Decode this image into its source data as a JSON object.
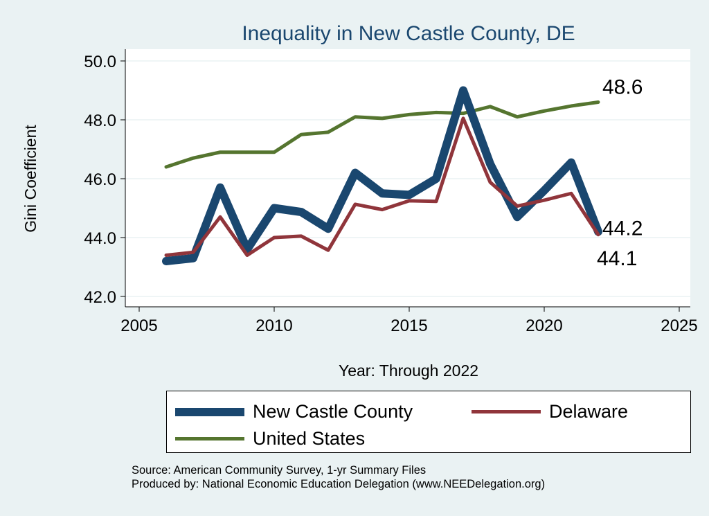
{
  "chart_data": {
    "type": "line",
    "title": "Inequality in New Castle County, DE",
    "xlabel": "Year: Through 2022",
    "ylabel": "Gini Coefficient",
    "xlim": [
      2004,
      2025.5
    ],
    "ylim": [
      41.6,
      50.4
    ],
    "xticks": [
      2005,
      2010,
      2015,
      2020,
      2025
    ],
    "yticks": [
      42.0,
      44.0,
      46.0,
      48.0,
      50.0
    ],
    "ytick_labels": [
      "42.0",
      "44.0",
      "46.0",
      "48.0",
      "50.0"
    ],
    "grid": true,
    "legend_placement": "bottom",
    "x": [
      2006,
      2007,
      2008,
      2009,
      2010,
      2011,
      2012,
      2013,
      2014,
      2015,
      2016,
      2017,
      2018,
      2019,
      2020,
      2021,
      2022
    ],
    "series": [
      {
        "name": "United States",
        "color": "#55752f",
        "width": 5,
        "values": [
          46.4,
          46.7,
          46.9,
          46.9,
          46.9,
          47.5,
          47.58,
          48.1,
          48.05,
          48.18,
          48.25,
          48.22,
          48.45,
          48.1,
          48.3,
          48.47,
          48.6
        ],
        "end_label": "48.6"
      },
      {
        "name": "New Castle County",
        "color": "#1a476f",
        "width": 12,
        "values": [
          43.2,
          43.3,
          45.7,
          43.6,
          45.0,
          44.87,
          44.3,
          46.2,
          45.5,
          45.45,
          46.0,
          49.0,
          46.5,
          44.7,
          45.6,
          46.55,
          44.2
        ],
        "end_label": "44.2"
      },
      {
        "name": "Delaware",
        "color": "#90353b",
        "width": 5,
        "values": [
          43.4,
          43.5,
          44.7,
          43.4,
          44.0,
          44.05,
          43.57,
          45.13,
          44.95,
          45.25,
          45.23,
          48.05,
          45.88,
          45.07,
          45.27,
          45.5,
          44.1
        ],
        "end_label": "44.1"
      }
    ]
  },
  "notes": {
    "source": "Source: American Community Survey, 1-yr Summary Files",
    "produced": "Produced by: National Economic Education Delegation (www.NEEDelegation.org)"
  }
}
